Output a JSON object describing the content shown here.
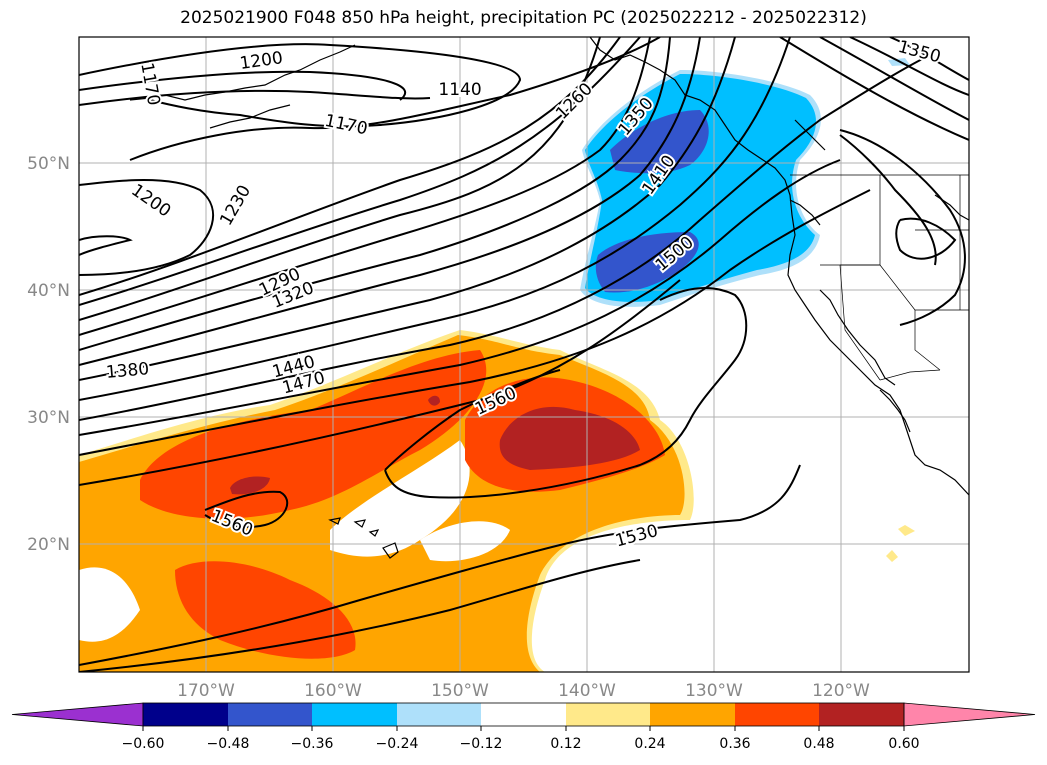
{
  "title": "2025021900 F048 850 hPa height, precipitation PC (2025022212 - 2025022312)",
  "map": {
    "lat_labels": [
      "50°N",
      "40°N",
      "30°N",
      "20°N"
    ],
    "lon_labels": [
      "170°W",
      "160°W",
      "150°W",
      "140°W",
      "130°W",
      "120°W"
    ],
    "contour_labels": [
      {
        "text": "1170",
        "rotate": 80
      },
      {
        "text": "1200",
        "rotate": -8
      },
      {
        "text": "1140",
        "rotate": 0
      },
      {
        "text": "1170",
        "rotate": 12
      },
      {
        "text": "1260",
        "rotate": -45
      },
      {
        "text": "1350",
        "rotate": -50
      },
      {
        "text": "1350",
        "rotate": 15
      },
      {
        "text": "1200",
        "rotate": 35
      },
      {
        "text": "1230",
        "rotate": -60
      },
      {
        "text": "1410",
        "rotate": -55
      },
      {
        "text": "1500",
        "rotate": -40
      },
      {
        "text": "1290",
        "rotate": -25
      },
      {
        "text": "1320",
        "rotate": -22
      },
      {
        "text": "1380",
        "rotate": -5
      },
      {
        "text": "1440",
        "rotate": -15
      },
      {
        "text": "1470",
        "rotate": -15
      },
      {
        "text": "1560",
        "rotate": -25
      },
      {
        "text": "1560",
        "rotate": 22
      },
      {
        "text": "1530",
        "rotate": -15
      }
    ]
  },
  "colorbar": {
    "colors": [
      "#9b30d0",
      "#00008b",
      "#3355cc",
      "#00bfff",
      "#aee0fa",
      "#ffffff",
      "#ffe98a",
      "#ffa500",
      "#ff4500",
      "#b22222",
      "#ff85aa"
    ],
    "labels": [
      "−0.60",
      "−0.48",
      "−0.36",
      "−0.24",
      "−0.12",
      "0.12",
      "0.24",
      "0.36",
      "0.48",
      "0.60"
    ]
  }
}
